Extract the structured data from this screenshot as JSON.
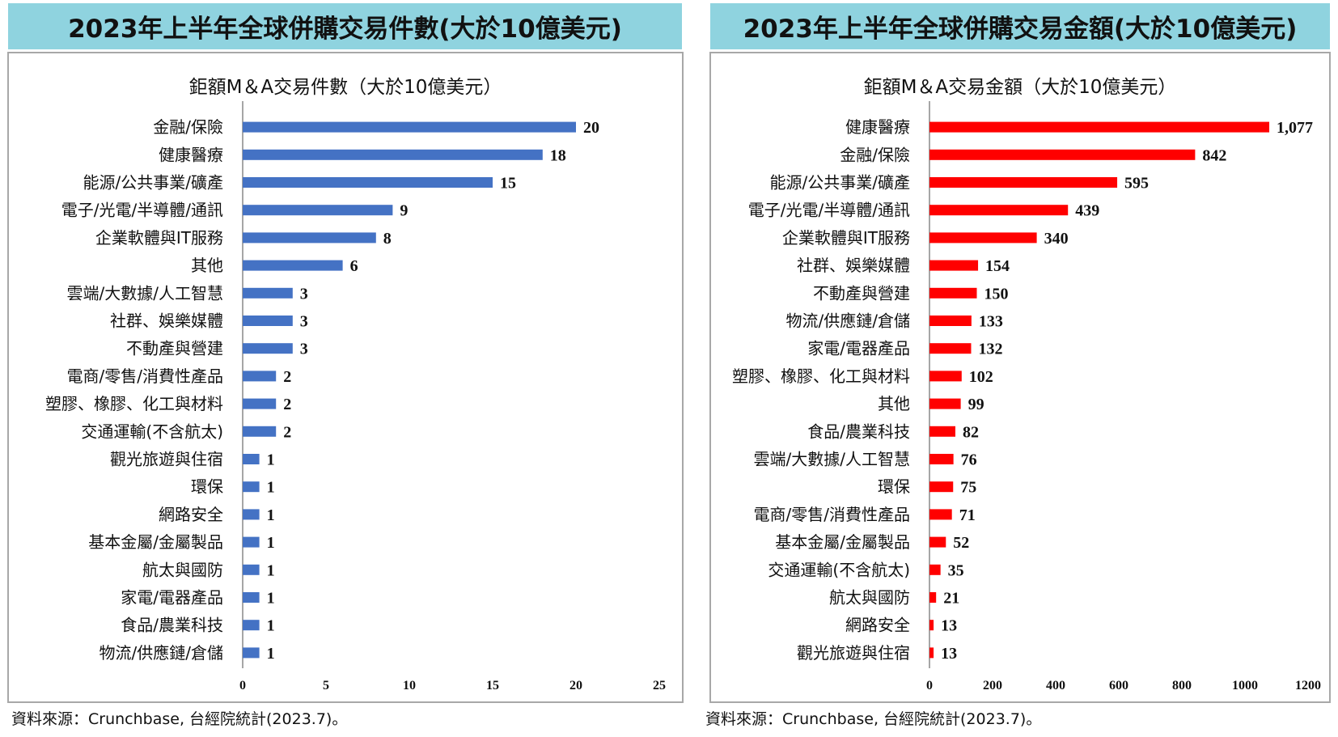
{
  "left": {
    "header": "2023年上半年全球併購交易件數(大於10億美元)",
    "source": "資料來源：Crunchbase, 台經院統計(2023.7)。",
    "chart_data": {
      "type": "bar",
      "orientation": "horizontal",
      "title": "鉅額M＆A交易件數（大於10億美元）",
      "categories": [
        "金融/保險",
        "健康醫療",
        "能源/公共事業/礦產",
        "電子/光電/半導體/通訊",
        "企業軟體與IT服務",
        "其他",
        "雲端/大數據/人工智慧",
        "社群、娛樂媒體",
        "不動產與營建",
        "電商/零售/消費性產品",
        "塑膠、橡膠、化工與材料",
        "交通運輸(不含航太)",
        "觀光旅遊與住宿",
        "環保",
        "網路安全",
        "基本金屬/金屬製品",
        "航太與國防",
        "家電/電器產品",
        "食品/農業科技",
        "物流/供應鏈/倉儲"
      ],
      "values": [
        20,
        18,
        15,
        9,
        8,
        6,
        3,
        3,
        3,
        2,
        2,
        2,
        1,
        1,
        1,
        1,
        1,
        1,
        1,
        1
      ],
      "value_labels": [
        "20",
        "18",
        "15",
        "9",
        "8",
        "6",
        "3",
        "3",
        "3",
        "2",
        "2",
        "2",
        "1",
        "1",
        "1",
        "1",
        "1",
        "1",
        "1",
        "1"
      ],
      "xlim": [
        0,
        25
      ],
      "ticks": [
        "0",
        "5",
        "10",
        "15",
        "20",
        "25"
      ],
      "tick_values": [
        0,
        5,
        10,
        15,
        20,
        25
      ],
      "color": "#4472c4",
      "grid": false
    }
  },
  "right": {
    "header": "2023年上半年全球併購交易金額(大於10億美元)",
    "source": "資料來源：Crunchbase, 台經院統計(2023.7)。",
    "chart_data": {
      "type": "bar",
      "orientation": "horizontal",
      "title": "鉅額M＆A交易金額（大於10億美元）",
      "categories": [
        "健康醫療",
        "金融/保險",
        "能源/公共事業/礦產",
        "電子/光電/半導體/通訊",
        "企業軟體與IT服務",
        "社群、娛樂媒體",
        "不動產與營建",
        "物流/供應鏈/倉儲",
        "家電/電器產品",
        "塑膠、橡膠、化工與材料",
        "其他",
        "食品/農業科技",
        "雲端/大數據/人工智慧",
        "環保",
        "電商/零售/消費性產品",
        "基本金屬/金屬製品",
        "交通運輸(不含航太)",
        "航太與國防",
        "網路安全",
        "觀光旅遊與住宿"
      ],
      "values": [
        1077,
        842,
        595,
        439,
        340,
        154,
        150,
        133,
        132,
        102,
        99,
        82,
        76,
        75,
        71,
        52,
        35,
        21,
        13,
        13
      ],
      "value_labels": [
        "1,077",
        "842",
        "595",
        "439",
        "340",
        "154",
        "150",
        "133",
        "132",
        "102",
        "99",
        "82",
        "76",
        "75",
        "71",
        "52",
        "35",
        "21",
        "13",
        "13"
      ],
      "xlim": [
        0,
        1200
      ],
      "ticks": [
        "0",
        "200",
        "400",
        "600",
        "800",
        "1000",
        "1200"
      ],
      "tick_values": [
        0,
        200,
        400,
        600,
        800,
        1000,
        1200
      ],
      "color": "#ff0000",
      "grid": false
    }
  }
}
